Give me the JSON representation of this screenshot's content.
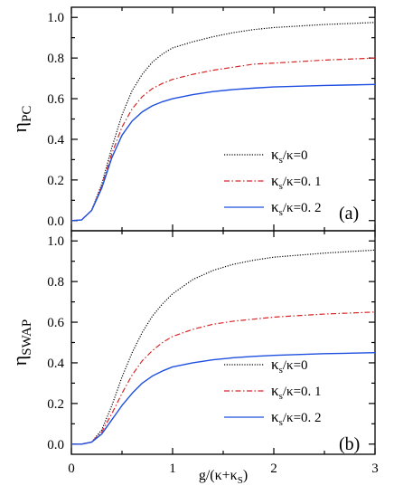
{
  "chart_data": [
    {
      "type": "line",
      "panel_label": "(a)",
      "ylabel": {
        "base": "η",
        "sub": "PC"
      },
      "xlim": [
        0,
        3
      ],
      "ylim": [
        -0.05,
        1.05
      ],
      "yticks": [
        "0.0",
        "0.2",
        "0.4",
        "0.6",
        "0.8",
        "1.0"
      ],
      "xticks": [],
      "grid": false,
      "legend_position": "right-middle",
      "legend": [
        {
          "base": "κ",
          "sub": "s",
          "rest": "/κ=0"
        },
        {
          "base": "κ",
          "sub": "s",
          "rest": "/κ=0. 1"
        },
        {
          "base": "κ",
          "sub": "s",
          "rest": "/κ=0. 2"
        }
      ],
      "series": [
        {
          "color": "#000000",
          "dash": "dotted",
          "x": [
            0,
            0.1,
            0.2,
            0.3,
            0.4,
            0.5,
            0.6,
            0.7,
            0.8,
            0.9,
            1.0,
            1.2,
            1.4,
            1.6,
            1.8,
            2.0,
            2.5,
            3.0
          ],
          "y": [
            0.0,
            0.003,
            0.05,
            0.18,
            0.36,
            0.52,
            0.64,
            0.72,
            0.78,
            0.82,
            0.85,
            0.88,
            0.905,
            0.925,
            0.94,
            0.95,
            0.965,
            0.975
          ]
        },
        {
          "color": "#d62728",
          "dash": "dashdot",
          "x": [
            0,
            0.1,
            0.2,
            0.3,
            0.4,
            0.5,
            0.6,
            0.7,
            0.8,
            0.9,
            1.0,
            1.2,
            1.4,
            1.6,
            1.8,
            2.0,
            2.5,
            3.0
          ],
          "y": [
            0.0,
            0.003,
            0.05,
            0.17,
            0.33,
            0.46,
            0.55,
            0.61,
            0.65,
            0.675,
            0.695,
            0.72,
            0.74,
            0.755,
            0.77,
            0.775,
            0.79,
            0.8
          ]
        },
        {
          "color": "#1f4fe0",
          "dash": "solid",
          "x": [
            0,
            0.1,
            0.2,
            0.3,
            0.4,
            0.5,
            0.6,
            0.7,
            0.8,
            0.9,
            1.0,
            1.2,
            1.4,
            1.6,
            1.8,
            2.0,
            2.5,
            3.0
          ],
          "y": [
            0.0,
            0.003,
            0.05,
            0.16,
            0.31,
            0.42,
            0.49,
            0.535,
            0.565,
            0.585,
            0.6,
            0.62,
            0.635,
            0.645,
            0.652,
            0.658,
            0.665,
            0.67
          ]
        }
      ]
    },
    {
      "type": "line",
      "panel_label": "(b)",
      "ylabel": {
        "base": "η",
        "sub": "SWAP"
      },
      "xlabel": {
        "pre": "g/(κ+κ",
        "sub": "S",
        "post": ")"
      },
      "xlim": [
        0,
        3
      ],
      "ylim": [
        -0.05,
        1.05
      ],
      "xticks": [
        "0",
        "1",
        "2",
        "3"
      ],
      "yticks": [
        "0.0",
        "0.2",
        "0.4",
        "0.6",
        "0.8",
        "1.0"
      ],
      "grid": false,
      "legend_position": "bottom-right",
      "legend": [
        {
          "base": "κ",
          "sub": "s",
          "rest": "/κ=0"
        },
        {
          "base": "κ",
          "sub": "s",
          "rest": "/κ=0. 1"
        },
        {
          "base": "κ",
          "sub": "s",
          "rest": "/κ=0. 2"
        }
      ],
      "series": [
        {
          "color": "#000000",
          "dash": "dotted",
          "x": [
            0,
            0.1,
            0.2,
            0.3,
            0.4,
            0.5,
            0.6,
            0.7,
            0.8,
            0.9,
            1.0,
            1.2,
            1.4,
            1.6,
            1.8,
            2.0,
            2.5,
            3.0
          ],
          "y": [
            0.0,
            0.0,
            0.01,
            0.07,
            0.19,
            0.33,
            0.45,
            0.55,
            0.63,
            0.69,
            0.74,
            0.81,
            0.855,
            0.885,
            0.905,
            0.92,
            0.94,
            0.955
          ]
        },
        {
          "color": "#d62728",
          "dash": "dashdot",
          "x": [
            0,
            0.1,
            0.2,
            0.3,
            0.4,
            0.5,
            0.6,
            0.7,
            0.8,
            0.9,
            1.0,
            1.2,
            1.4,
            1.6,
            1.8,
            2.0,
            2.5,
            3.0
          ],
          "y": [
            0.0,
            0.0,
            0.01,
            0.06,
            0.15,
            0.25,
            0.34,
            0.41,
            0.46,
            0.5,
            0.53,
            0.565,
            0.59,
            0.605,
            0.615,
            0.625,
            0.64,
            0.65
          ]
        },
        {
          "color": "#1f4fe0",
          "dash": "solid",
          "x": [
            0,
            0.1,
            0.2,
            0.3,
            0.4,
            0.5,
            0.6,
            0.7,
            0.8,
            0.9,
            1.0,
            1.2,
            1.4,
            1.6,
            1.8,
            2.0,
            2.5,
            3.0
          ],
          "y": [
            0.0,
            0.0,
            0.01,
            0.05,
            0.12,
            0.19,
            0.25,
            0.3,
            0.335,
            0.36,
            0.38,
            0.4,
            0.415,
            0.425,
            0.432,
            0.437,
            0.445,
            0.45
          ]
        }
      ]
    }
  ]
}
